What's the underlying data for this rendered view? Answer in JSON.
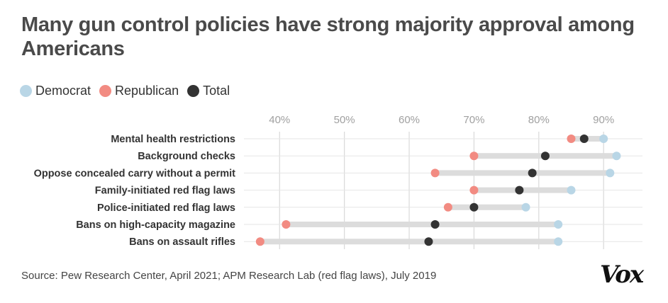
{
  "title": "Many gun control policies have strong majority approval among Americans",
  "legend": [
    {
      "label": "Democrat",
      "color": "#b9d6e6"
    },
    {
      "label": "Republican",
      "color": "#f28b82"
    },
    {
      "label": "Total",
      "color": "#333333"
    }
  ],
  "chart_data": {
    "type": "dot",
    "categories": [
      "Mental health restrictions",
      "Background checks",
      "Oppose concealed carry without a permit",
      "Family-initiated red flag laws",
      "Police-initiated red flag laws",
      "Bans on high-capacity magazine",
      "Bans on assault rifles"
    ],
    "series": [
      {
        "name": "Democrat",
        "color": "#b9d6e6",
        "values": [
          90,
          92,
          91,
          85,
          78,
          83,
          83
        ]
      },
      {
        "name": "Republican",
        "color": "#f28b82",
        "values": [
          85,
          70,
          64,
          70,
          66,
          41,
          37
        ]
      },
      {
        "name": "Total",
        "color": "#333333",
        "values": [
          87,
          81,
          79,
          77,
          70,
          64,
          63
        ]
      }
    ],
    "xlim": [
      34.5,
      96
    ],
    "xticks": [
      40,
      50,
      60,
      70,
      80,
      90
    ],
    "xtick_labels": [
      "40%",
      "50%",
      "60%",
      "70%",
      "80%",
      "90%"
    ],
    "grid": true
  },
  "source": "Source: Pew Research Center, April 2021; APM Research Lab (red flag laws), July 2019",
  "logo": "Vox"
}
